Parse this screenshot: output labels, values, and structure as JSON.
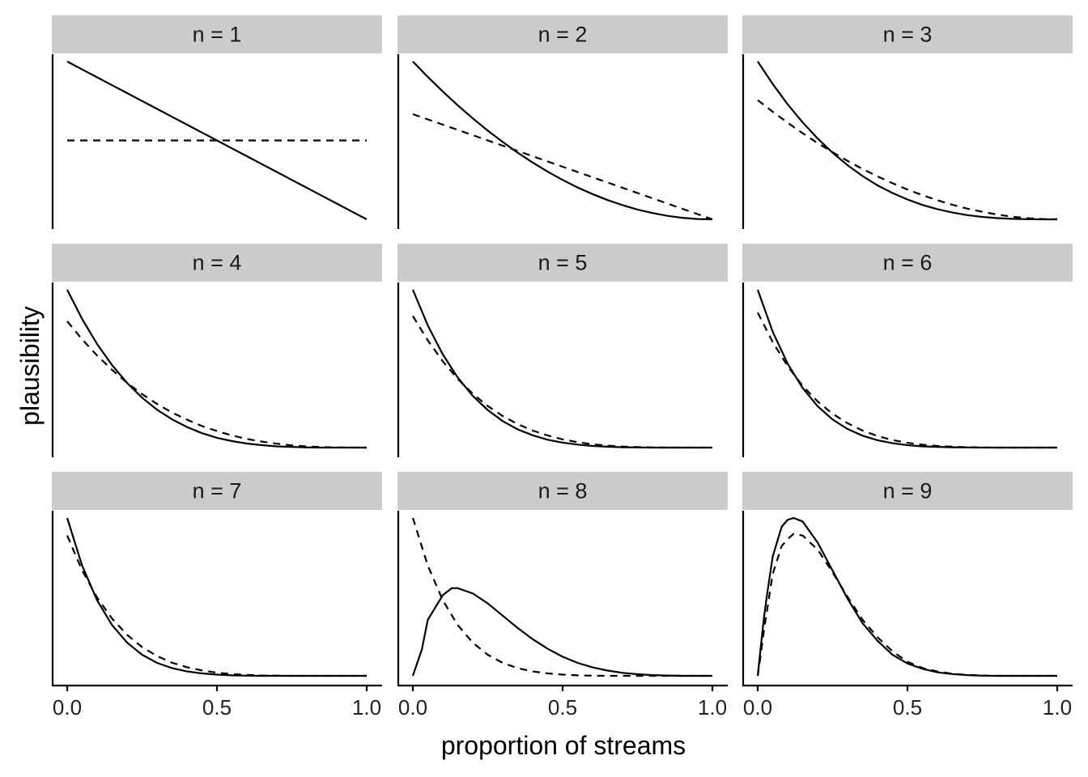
{
  "chart_data": {
    "type": "line",
    "layout": "facet-grid 3x3",
    "xlabel": "proportion of streams",
    "ylabel": "plausibility",
    "xlim": [
      0,
      1
    ],
    "x_ticks": [
      "0.0",
      "0.5",
      "1.0"
    ],
    "y_ticks_shown": false,
    "grid": false,
    "legend": "none",
    "line_color": "#000000",
    "strip_color": "#cccccc",
    "x": [
      0,
      0.05,
      0.1,
      0.15,
      0.2,
      0.25,
      0.3,
      0.35,
      0.4,
      0.45,
      0.5,
      0.55,
      0.6,
      0.65,
      0.7,
      0.75,
      0.8,
      0.85,
      0.9,
      0.95,
      1.0
    ],
    "series_styles": [
      {
        "key": "solid",
        "linetype": "solid"
      },
      {
        "key": "dashed",
        "linetype": "dashed"
      }
    ],
    "panels": [
      {
        "label": "n = 1",
        "solid": [
          0.9,
          0.855,
          0.81,
          0.765,
          0.72,
          0.675,
          0.63,
          0.585,
          0.54,
          0.495,
          0.45,
          0.405,
          0.36,
          0.315,
          0.27,
          0.225,
          0.18,
          0.135,
          0.09,
          0.045,
          0.0
        ],
        "dashed": [
          0.45,
          0.45,
          0.45,
          0.45,
          0.45,
          0.45,
          0.45,
          0.45,
          0.45,
          0.45,
          0.45,
          0.45,
          0.45,
          0.45,
          0.45,
          0.45,
          0.45,
          0.45,
          0.45,
          0.45,
          0.45
        ]
      },
      {
        "label": "n = 2",
        "solid": [
          0.9,
          0.812,
          0.729,
          0.65,
          0.576,
          0.506,
          0.441,
          0.38,
          0.324,
          0.272,
          0.225,
          0.182,
          0.144,
          0.11,
          0.081,
          0.056,
          0.036,
          0.02,
          0.009,
          0.002,
          0.0
        ],
        "dashed": [
          0.6,
          0.57,
          0.54,
          0.51,
          0.48,
          0.45,
          0.42,
          0.39,
          0.36,
          0.33,
          0.3,
          0.27,
          0.24,
          0.21,
          0.18,
          0.15,
          0.12,
          0.09,
          0.06,
          0.03,
          0.0
        ]
      },
      {
        "label": "n = 3",
        "solid": [
          0.9,
          0.772,
          0.656,
          0.553,
          0.461,
          0.38,
          0.309,
          0.247,
          0.194,
          0.15,
          0.113,
          0.082,
          0.058,
          0.039,
          0.024,
          0.014,
          0.007,
          0.003,
          0.001,
          0.0,
          0.0
        ],
        "dashed": [
          0.68,
          0.614,
          0.551,
          0.491,
          0.435,
          0.383,
          0.333,
          0.287,
          0.245,
          0.206,
          0.17,
          0.138,
          0.109,
          0.083,
          0.061,
          0.043,
          0.027,
          0.015,
          0.007,
          0.002,
          0.0
        ]
      },
      {
        "label": "n = 4",
        "solid": [
          0.9,
          0.733,
          0.59,
          0.47,
          0.369,
          0.285,
          0.216,
          0.161,
          0.117,
          0.082,
          0.056,
          0.037,
          0.023,
          0.014,
          0.007,
          0.004,
          0.001,
          0.0,
          0.0,
          0.0,
          0.0
        ],
        "dashed": [
          0.72,
          0.617,
          0.525,
          0.443,
          0.369,
          0.305,
          0.249,
          0.2,
          0.159,
          0.123,
          0.094,
          0.069,
          0.049,
          0.034,
          0.022,
          0.013,
          0.007,
          0.003,
          0.001,
          0.0,
          0.0
        ]
      },
      {
        "label": "n = 5",
        "solid": [
          0.9,
          0.696,
          0.531,
          0.399,
          0.295,
          0.214,
          0.151,
          0.104,
          0.07,
          0.045,
          0.028,
          0.017,
          0.009,
          0.005,
          0.002,
          0.001,
          0.0,
          0.0,
          0.0,
          0.0,
          0.0
        ],
        "dashed": [
          0.75,
          0.611,
          0.492,
          0.391,
          0.307,
          0.237,
          0.18,
          0.134,
          0.097,
          0.069,
          0.047,
          0.031,
          0.019,
          0.011,
          0.006,
          0.003,
          0.001,
          0.0,
          0.0,
          0.0,
          0.0
        ]
      },
      {
        "label": "n = 6",
        "solid": [
          0.9,
          0.661,
          0.478,
          0.34,
          0.236,
          0.16,
          0.106,
          0.068,
          0.042,
          0.025,
          0.014,
          0.007,
          0.004,
          0.002,
          0.001,
          0.0,
          0.0,
          0.0,
          0.0,
          0.0,
          0.0
        ],
        "dashed": [
          0.77,
          0.602,
          0.464,
          0.352,
          0.263,
          0.193,
          0.139,
          0.097,
          0.066,
          0.043,
          0.027,
          0.016,
          0.009,
          0.005,
          0.002,
          0.001,
          0.0,
          0.0,
          0.0,
          0.0,
          0.0
        ]
      },
      {
        "label": "n = 7",
        "solid": [
          0.9,
          0.628,
          0.43,
          0.289,
          0.189,
          0.12,
          0.074,
          0.044,
          0.025,
          0.014,
          0.007,
          0.003,
          0.001,
          0.0,
          0.0,
          0.0,
          0.0,
          0.0,
          0.0,
          0.0,
          0.0
        ],
        "dashed": [
          0.8,
          0.601,
          0.446,
          0.326,
          0.234,
          0.164,
          0.113,
          0.075,
          0.049,
          0.031,
          0.018,
          0.01,
          0.005,
          0.002,
          0.001,
          0.0,
          0.0,
          0.0,
          0.0,
          0.0,
          0.0
        ]
      },
      {
        "label": "n = 8",
        "solid": [
          0.0,
          0.32,
          0.46,
          0.5,
          0.47,
          0.413,
          0.343,
          0.273,
          0.209,
          0.154,
          0.109,
          0.074,
          0.048,
          0.03,
          0.017,
          0.009,
          0.004,
          0.002,
          0.0,
          0.0,
          0.0
        ],
        "dashed": [
          0.9,
          0.628,
          0.43,
          0.289,
          0.189,
          0.12,
          0.074,
          0.044,
          0.025,
          0.014,
          0.007,
          0.003,
          0.001,
          0.0,
          0.0,
          0.0,
          0.0,
          0.0,
          0.0,
          0.0,
          0.0
        ],
        "extra_x": [
          0.01,
          0.02,
          0.03,
          0.13
        ],
        "extra_solid": [
          0.05,
          0.1,
          0.15,
          0.5
        ],
        "extra_dashed": [
          null,
          null,
          null,
          null
        ]
      },
      {
        "label": "n = 9",
        "solid": [
          0.0,
          0.68,
          0.89,
          0.88,
          0.76,
          0.6,
          0.44,
          0.3,
          0.2,
          0.12,
          0.07,
          0.04,
          0.02,
          0.01,
          0.004,
          0.001,
          0.0,
          0.0,
          0.0,
          0.0,
          0.0
        ],
        "dashed": [
          0.0,
          0.58,
          0.78,
          0.8,
          0.72,
          0.59,
          0.45,
          0.32,
          0.22,
          0.14,
          0.08,
          0.045,
          0.025,
          0.012,
          0.005,
          0.002,
          0.0,
          0.0,
          0.0,
          0.0,
          0.0
        ],
        "extra_x": [
          0.01,
          0.02,
          0.03,
          0.08,
          0.12
        ],
        "extra_solid": [
          0.16,
          0.32,
          0.45,
          0.85,
          0.9
        ],
        "extra_dashed": [
          0.12,
          0.25,
          0.36,
          0.74,
          0.81
        ]
      }
    ]
  }
}
